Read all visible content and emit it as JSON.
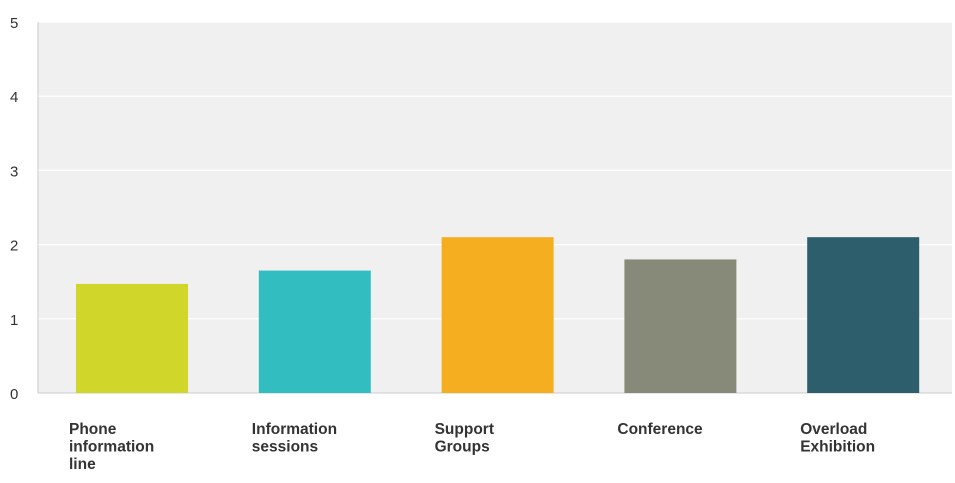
{
  "chart_data": {
    "type": "bar",
    "title": "",
    "xlabel": "",
    "ylabel": "",
    "ylim": [
      0,
      5
    ],
    "yticks": [
      0,
      1,
      2,
      3,
      4,
      5
    ],
    "grid": true,
    "legend": "none",
    "categories": [
      "Phone information line",
      "Information sessions",
      "Support Groups",
      "Conference",
      "Overload Exhibition"
    ],
    "category_lines": [
      [
        "Phone",
        "information",
        "line"
      ],
      [
        "Information",
        "sessions"
      ],
      [
        "Support",
        "Groups"
      ],
      [
        "Conference"
      ],
      [
        "Overload",
        "Exhibition"
      ]
    ],
    "values": [
      1.47,
      1.65,
      2.1,
      1.8,
      2.1
    ],
    "colors": [
      "#d0d62a",
      "#32bec0",
      "#f5ae20",
      "#878a78",
      "#2c5f6b"
    ],
    "plot_background": "#f0f0f0",
    "grid_color": "#ffffff",
    "axis_color": "#cccccc"
  }
}
